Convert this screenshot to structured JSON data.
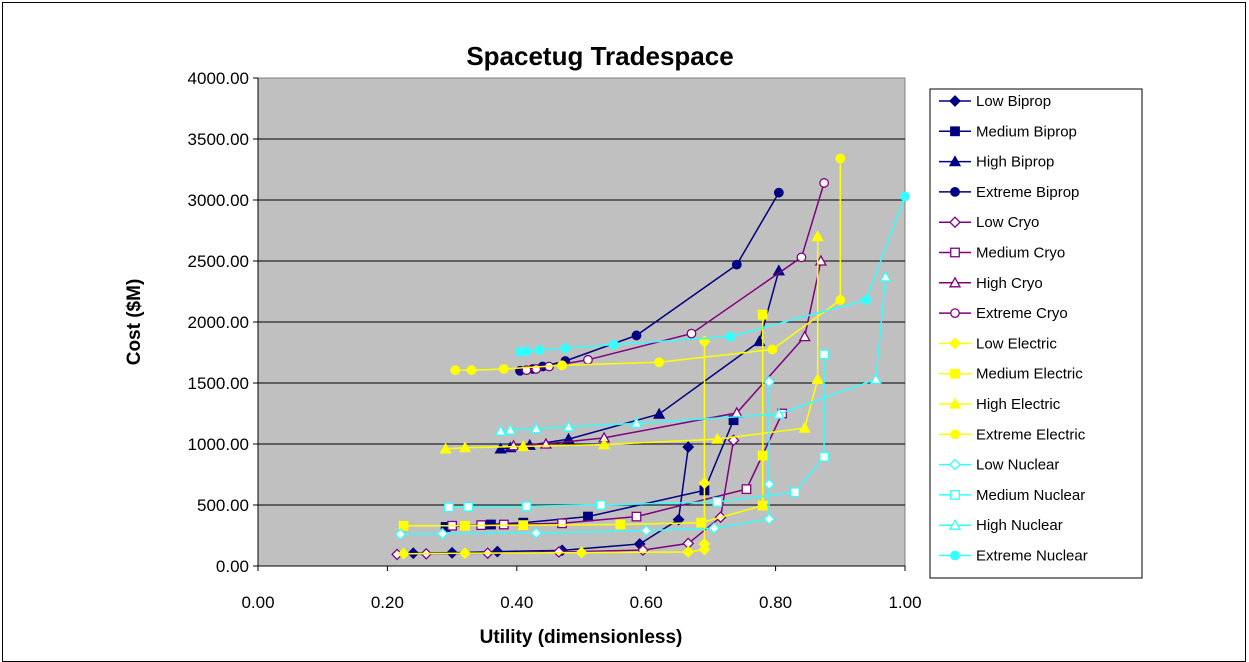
{
  "chart_data": {
    "type": "line",
    "title": "Spacetug Tradespace",
    "xlabel": "Utility (dimensionless)",
    "ylabel": "Cost ($M)",
    "xlim": [
      0,
      1
    ],
    "ylim": [
      0,
      4000
    ],
    "x_ticks": [
      "0.00",
      "0.20",
      "0.40",
      "0.60",
      "0.80",
      "1.00"
    ],
    "y_ticks": [
      "0.00",
      "500.00",
      "1000.00",
      "1500.00",
      "2000.00",
      "2500.00",
      "3000.00",
      "3500.00",
      "4000.00"
    ],
    "grid": "horizontal",
    "plot_background": "#c0c0c0",
    "legend_position": "right",
    "series": [
      {
        "name": "Low Biprop",
        "color": "#000080",
        "marker": "diamond",
        "filled": true,
        "points": [
          [
            0.24,
            105
          ],
          [
            0.3,
            108
          ],
          [
            0.37,
            118
          ],
          [
            0.47,
            128
          ],
          [
            0.59,
            180
          ],
          [
            0.65,
            380
          ],
          [
            0.665,
            975
          ]
        ]
      },
      {
        "name": "Medium Biprop",
        "color": "#000080",
        "marker": "square",
        "filled": true,
        "points": [
          [
            0.29,
            320
          ],
          [
            0.36,
            340
          ],
          [
            0.41,
            355
          ],
          [
            0.51,
            405
          ],
          [
            0.69,
            620
          ],
          [
            0.735,
            1195
          ]
        ]
      },
      {
        "name": "High Biprop",
        "color": "#000080",
        "marker": "triangle",
        "filled": true,
        "points": [
          [
            0.375,
            960
          ],
          [
            0.39,
            970
          ],
          [
            0.42,
            990
          ],
          [
            0.48,
            1040
          ],
          [
            0.62,
            1245
          ],
          [
            0.775,
            1840
          ],
          [
            0.805,
            2420
          ]
        ]
      },
      {
        "name": "Extreme Biprop",
        "color": "#000080",
        "marker": "circle",
        "filled": true,
        "points": [
          [
            0.405,
            1600
          ],
          [
            0.425,
            1615
          ],
          [
            0.44,
            1635
          ],
          [
            0.475,
            1680
          ],
          [
            0.585,
            1890
          ],
          [
            0.74,
            2470
          ],
          [
            0.805,
            3060
          ]
        ]
      },
      {
        "name": "Low Cryo",
        "color": "#800080",
        "marker": "diamond",
        "filled": false,
        "points": [
          [
            0.215,
            95
          ],
          [
            0.26,
            100
          ],
          [
            0.355,
            105
          ],
          [
            0.465,
            115
          ],
          [
            0.595,
            130
          ],
          [
            0.665,
            185
          ],
          [
            0.715,
            400
          ],
          [
            0.735,
            1030
          ]
        ]
      },
      {
        "name": "Medium Cryo",
        "color": "#800080",
        "marker": "square",
        "filled": false,
        "points": [
          [
            0.3,
            330
          ],
          [
            0.345,
            335
          ],
          [
            0.38,
            340
          ],
          [
            0.47,
            350
          ],
          [
            0.585,
            405
          ],
          [
            0.755,
            630
          ],
          [
            0.81,
            1250
          ]
        ]
      },
      {
        "name": "High Cryo",
        "color": "#800080",
        "marker": "triangle",
        "filled": false,
        "points": [
          [
            0.395,
            985
          ],
          [
            0.445,
            1000
          ],
          [
            0.535,
            1050
          ],
          [
            0.74,
            1255
          ],
          [
            0.845,
            1880
          ],
          [
            0.87,
            2500
          ]
        ]
      },
      {
        "name": "Extreme Cryo",
        "color": "#800080",
        "marker": "circle",
        "filled": false,
        "points": [
          [
            0.415,
            1605
          ],
          [
            0.43,
            1615
          ],
          [
            0.45,
            1635
          ],
          [
            0.51,
            1690
          ],
          [
            0.67,
            1905
          ],
          [
            0.84,
            2530
          ],
          [
            0.875,
            3140
          ]
        ]
      },
      {
        "name": "Low Electric",
        "color": "#ffff00",
        "marker": "diamond",
        "filled": true,
        "points": [
          [
            0.225,
            100
          ],
          [
            0.32,
            105
          ],
          [
            0.5,
            110
          ],
          [
            0.665,
            115
          ],
          [
            0.69,
            135
          ],
          [
            0.69,
            180
          ],
          [
            0.69,
            680
          ],
          [
            0.69,
            1840
          ]
        ]
      },
      {
        "name": "Medium Electric",
        "color": "#ffff00",
        "marker": "square",
        "filled": true,
        "points": [
          [
            0.225,
            330
          ],
          [
            0.32,
            330
          ],
          [
            0.41,
            335
          ],
          [
            0.56,
            340
          ],
          [
            0.685,
            355
          ],
          [
            0.78,
            495
          ],
          [
            0.78,
            905
          ],
          [
            0.78,
            2060
          ]
        ]
      },
      {
        "name": "High Electric",
        "color": "#ffff00",
        "marker": "triangle",
        "filled": true,
        "points": [
          [
            0.29,
            960
          ],
          [
            0.32,
            970
          ],
          [
            0.41,
            980
          ],
          [
            0.535,
            995
          ],
          [
            0.71,
            1040
          ],
          [
            0.845,
            1130
          ],
          [
            0.865,
            1530
          ],
          [
            0.865,
            2700
          ]
        ]
      },
      {
        "name": "Extreme Electric",
        "color": "#ffff00",
        "marker": "circle",
        "filled": true,
        "points": [
          [
            0.305,
            1605
          ],
          [
            0.33,
            1605
          ],
          [
            0.38,
            1615
          ],
          [
            0.47,
            1645
          ],
          [
            0.62,
            1670
          ],
          [
            0.795,
            1775
          ],
          [
            0.9,
            2180
          ],
          [
            0.9,
            3340
          ]
        ]
      },
      {
        "name": "Low Nuclear",
        "color": "#33ffff",
        "marker": "diamond",
        "filled": false,
        "points": [
          [
            0.22,
            260
          ],
          [
            0.285,
            265
          ],
          [
            0.43,
            270
          ],
          [
            0.6,
            290
          ],
          [
            0.705,
            310
          ],
          [
            0.79,
            385
          ],
          [
            0.79,
            670
          ],
          [
            0.79,
            1510
          ]
        ]
      },
      {
        "name": "Medium Nuclear",
        "color": "#33ffff",
        "marker": "square",
        "filled": false,
        "points": [
          [
            0.295,
            480
          ],
          [
            0.325,
            485
          ],
          [
            0.415,
            490
          ],
          [
            0.53,
            500
          ],
          [
            0.71,
            525
          ],
          [
            0.83,
            605
          ],
          [
            0.875,
            895
          ],
          [
            0.875,
            1735
          ]
        ]
      },
      {
        "name": "High Nuclear",
        "color": "#33ffff",
        "marker": "triangle",
        "filled": false,
        "points": [
          [
            0.375,
            1105
          ],
          [
            0.39,
            1115
          ],
          [
            0.43,
            1125
          ],
          [
            0.48,
            1140
          ],
          [
            0.585,
            1170
          ],
          [
            0.805,
            1245
          ],
          [
            0.955,
            1530
          ],
          [
            0.97,
            2370
          ]
        ]
      },
      {
        "name": "Extreme Nuclear",
        "color": "#33ffff",
        "marker": "circle",
        "filled": true,
        "points": [
          [
            0.405,
            1755
          ],
          [
            0.415,
            1760
          ],
          [
            0.435,
            1770
          ],
          [
            0.475,
            1785
          ],
          [
            0.55,
            1815
          ],
          [
            0.73,
            1880
          ],
          [
            0.94,
            2180
          ],
          [
            1.0,
            3030
          ]
        ]
      }
    ]
  }
}
